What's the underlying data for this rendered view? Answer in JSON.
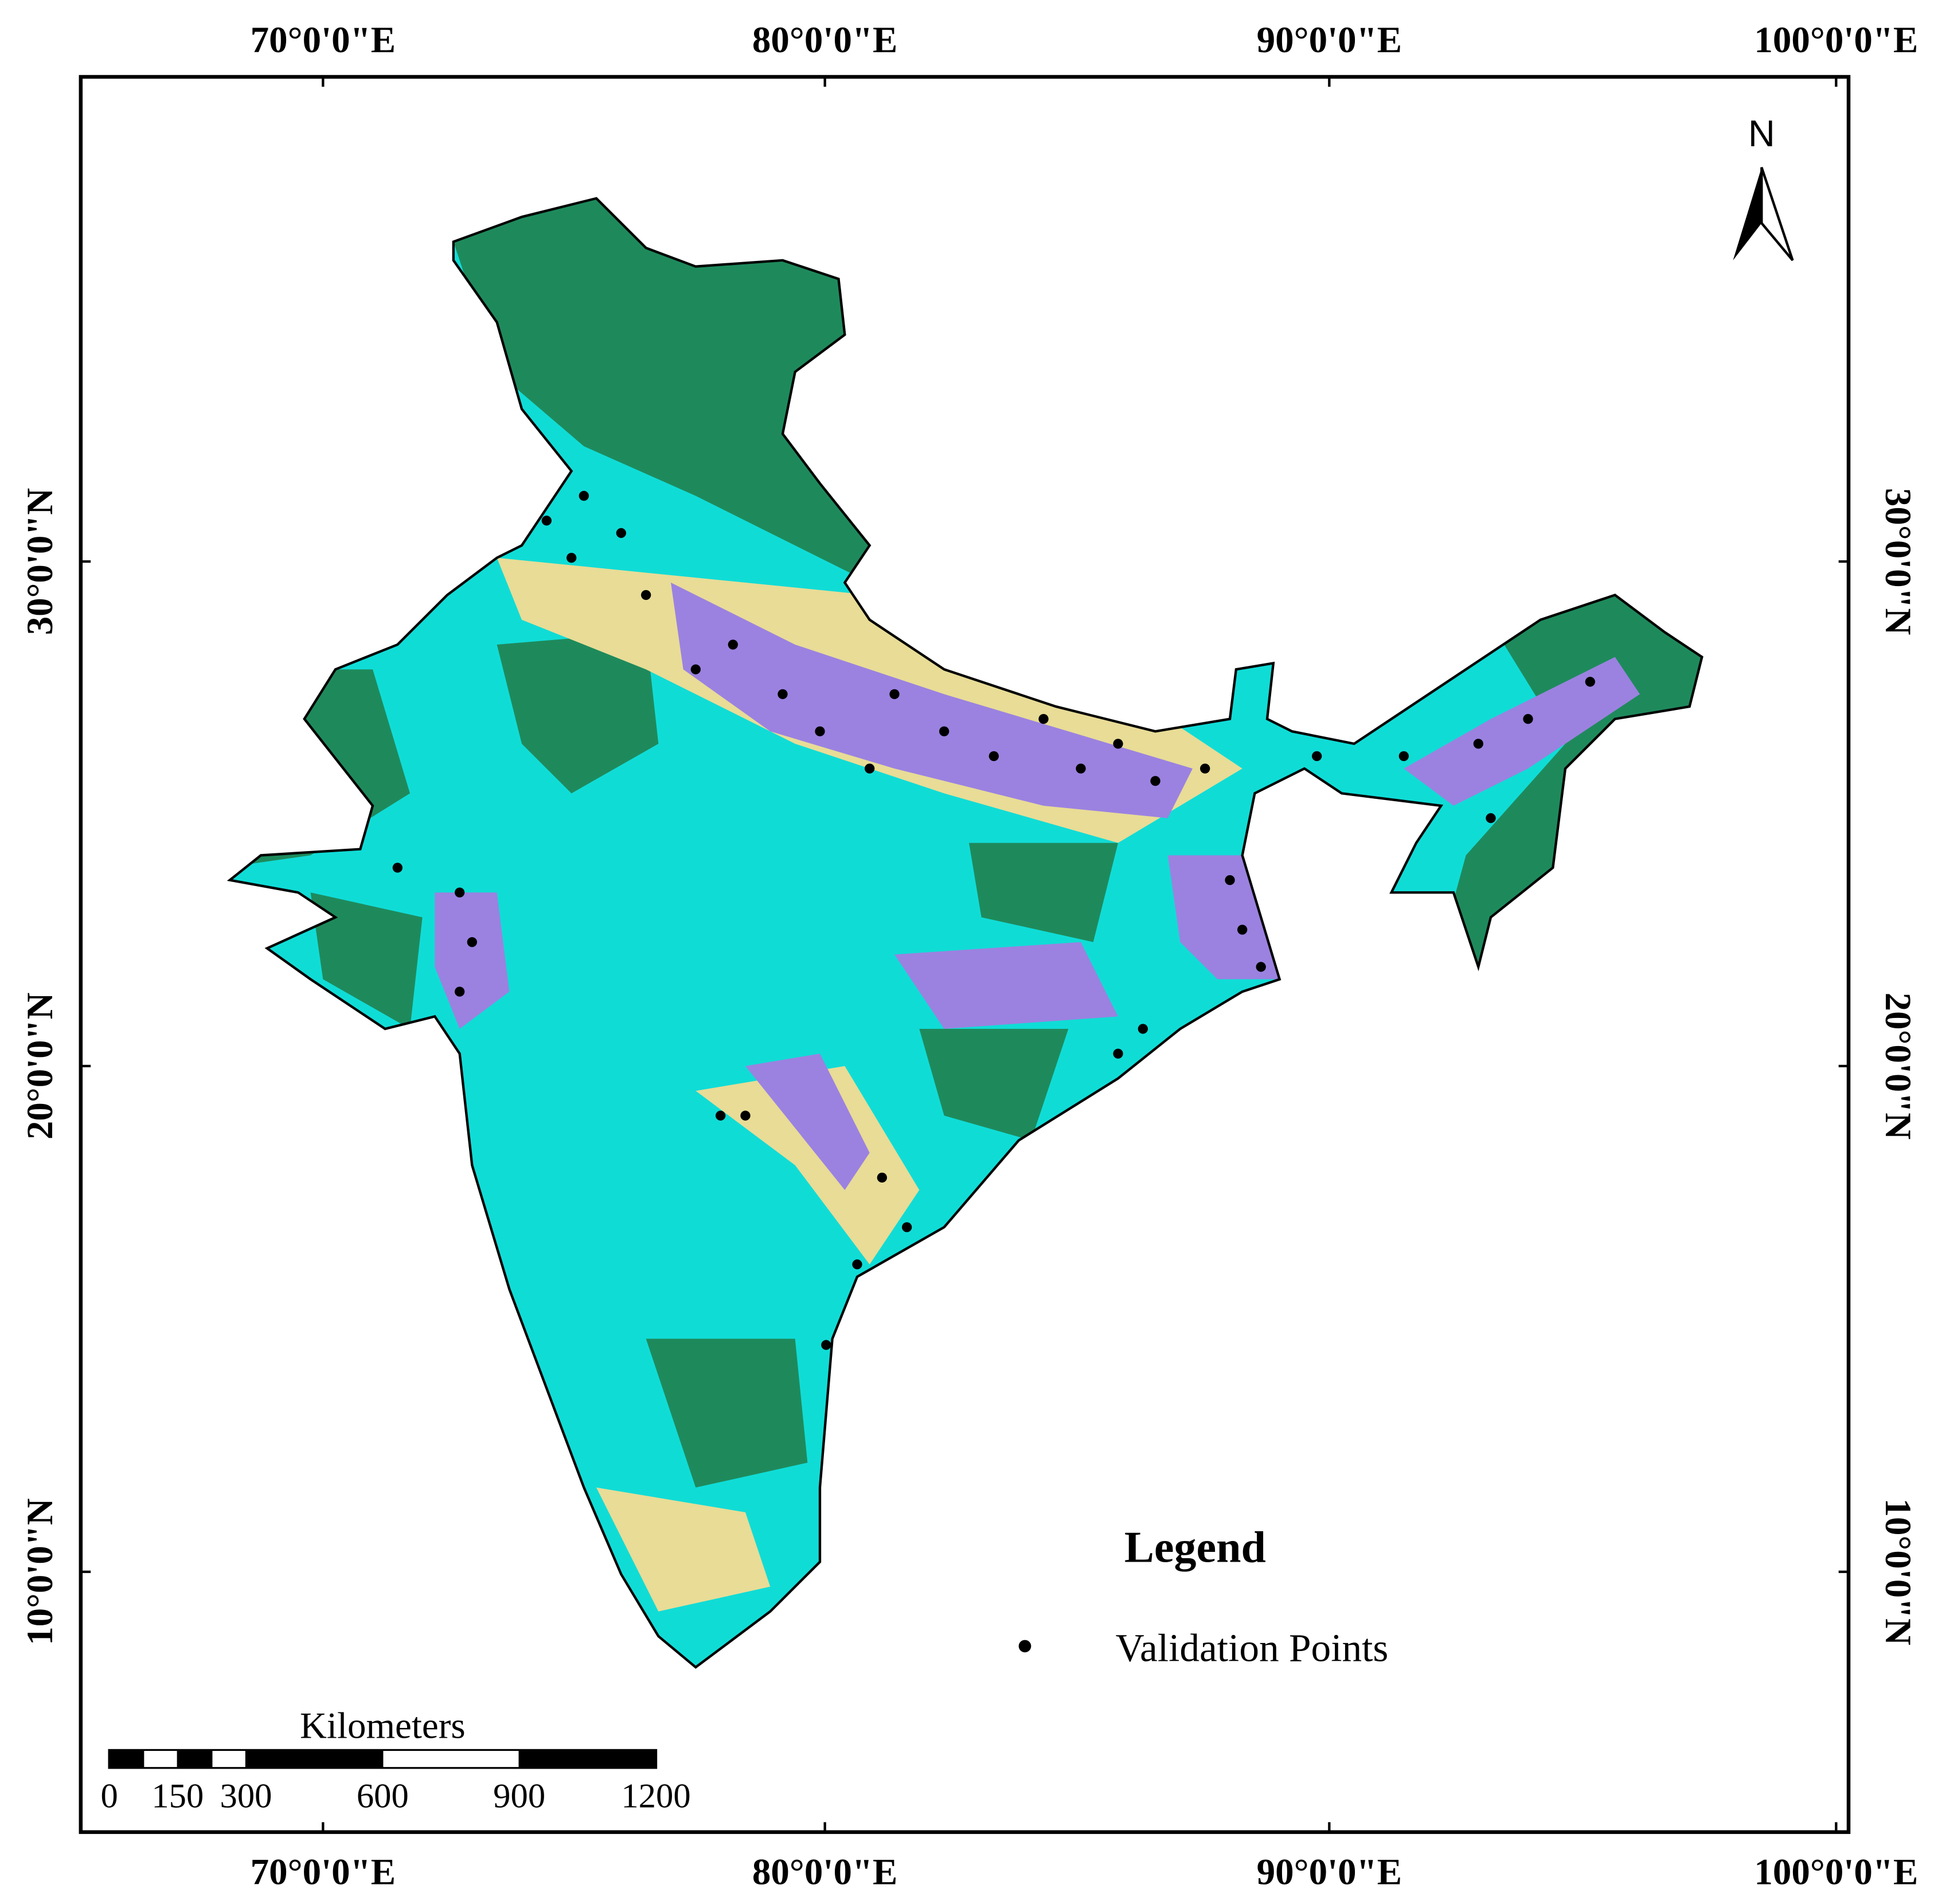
{
  "map": {
    "top_labels": [
      "70°0'0\"E",
      "80°0'0\"E",
      "90°0'0\"E",
      "100°0'0\"E"
    ],
    "bottom_labels": [
      "70°0'0\"E",
      "80°0'0\"E",
      "90°0'0\"E",
      "100°0'0\"E"
    ],
    "left_labels": [
      "30°0'0\"N",
      "20°0'0\"N",
      "10°0'0\"N"
    ],
    "right_labels": [
      "30°0'0\"N",
      "20°0'0\"N",
      "10°0'0\"N"
    ],
    "north": "N"
  },
  "legend": {
    "title": "Legend",
    "items": [
      "Validation Points"
    ]
  },
  "scale_bar": {
    "title": "Kilometers",
    "ticks": [
      0,
      150,
      300,
      600,
      900,
      1200
    ]
  }
}
